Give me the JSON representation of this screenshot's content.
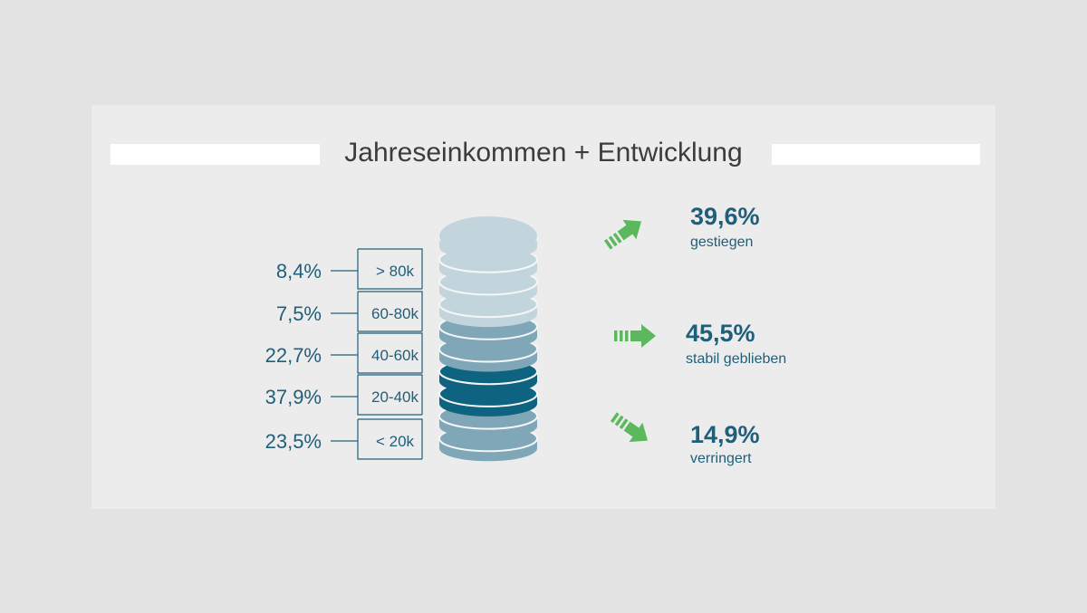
{
  "title": "Jahreseinkommen + Entwicklung",
  "colors": {
    "text": "#1f5f7a",
    "coin_light": "#c3d5dc",
    "coin_medium": "#7fa7b7",
    "coin_dark": "#0d6380",
    "arrow": "#5cb85c"
  },
  "chart_data": [
    {
      "type": "stacked-coin",
      "title": "Jahreseinkommen",
      "categories": [
        "> 80k",
        "60-80k",
        "40-60k",
        "20-40k",
        "< 20k"
      ],
      "values": [
        8.4,
        7.5,
        22.7,
        37.9,
        23.5
      ],
      "value_labels": [
        "8,4%",
        "7,5%",
        "22,7%",
        "37,9%",
        "23,5%"
      ],
      "unit": "%"
    },
    {
      "type": "table",
      "title": "Entwicklung",
      "categories": [
        "gestiegen",
        "stabil geblieben",
        "verringert"
      ],
      "values": [
        39.6,
        45.5,
        14.9
      ],
      "value_labels": [
        "39,6%",
        "45,5%",
        "14,9%"
      ],
      "directions": [
        "up",
        "flat",
        "down"
      ],
      "unit": "%"
    }
  ]
}
